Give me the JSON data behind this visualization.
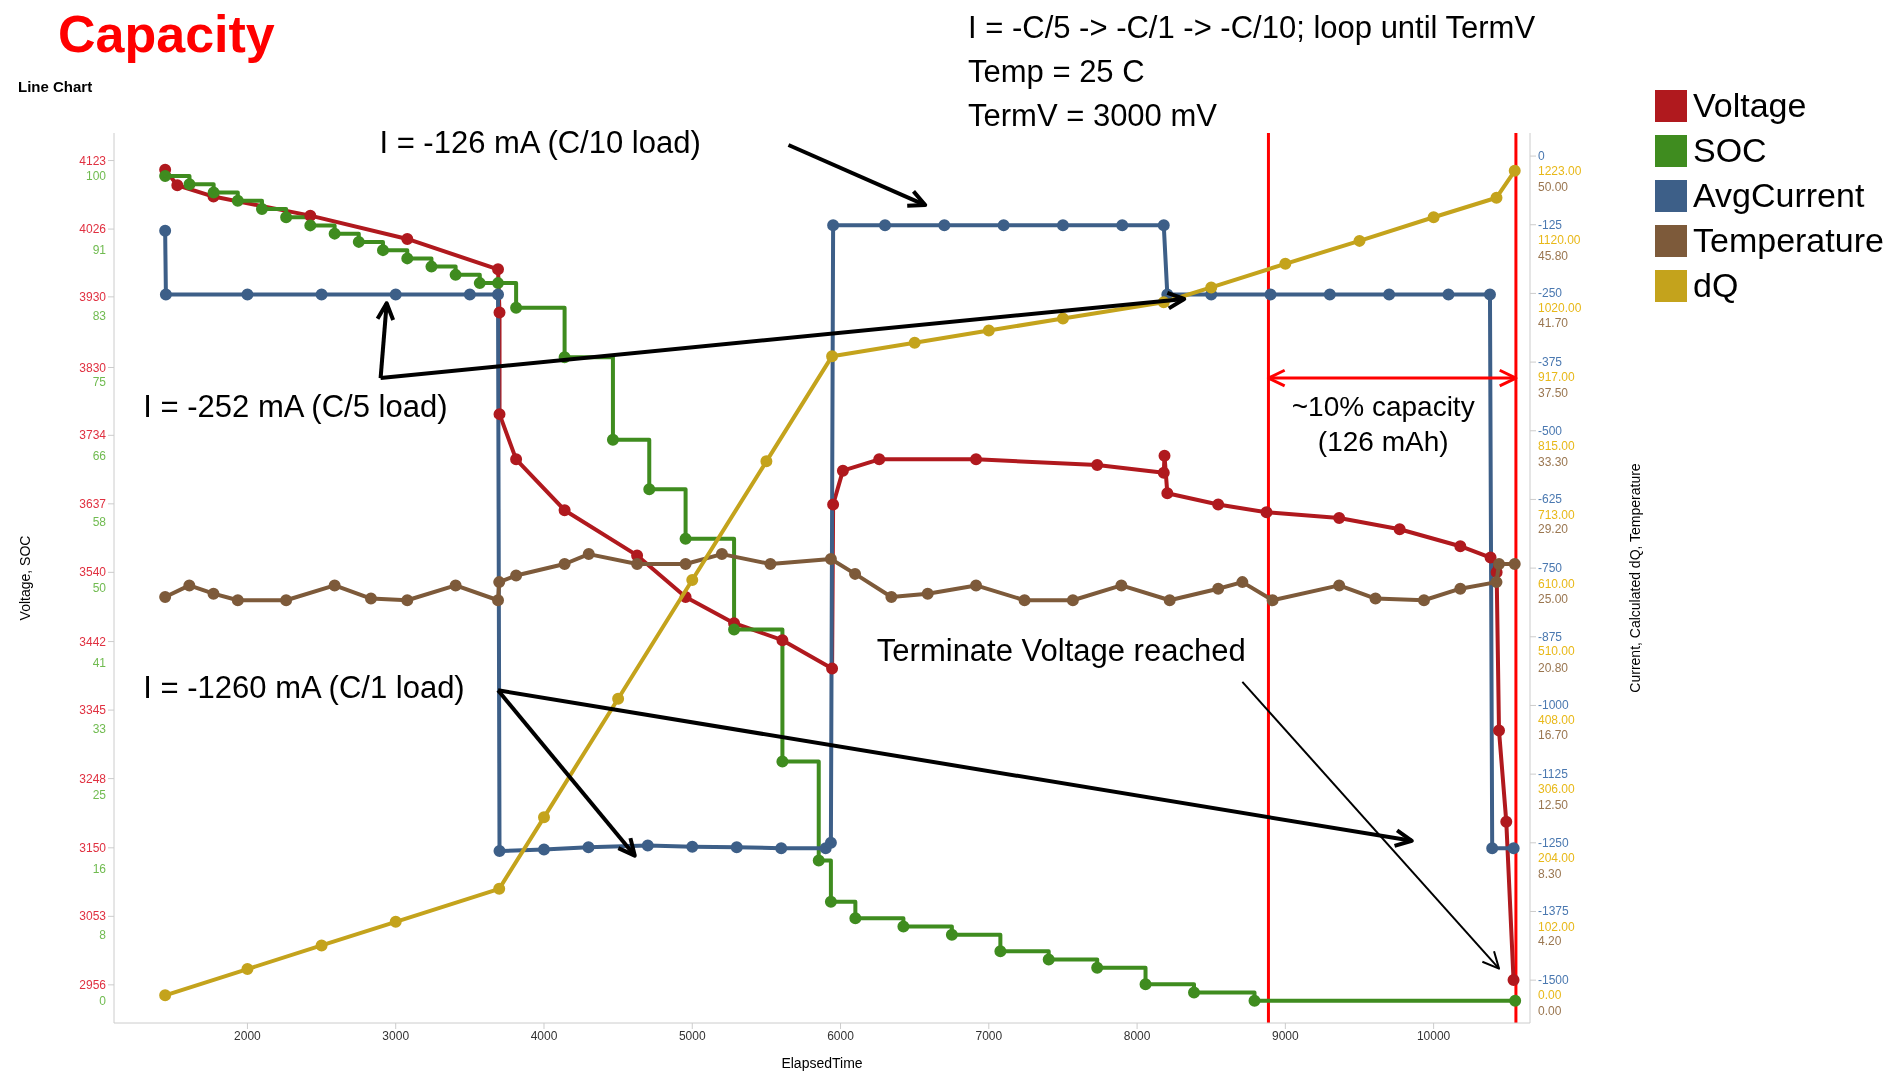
{
  "chart_data": [
    {
      "type": "line",
      "title": "Capacity",
      "subtitle": "Line Chart",
      "xlabel": "ElapsedTime",
      "ylabel": "Voltage, SOC",
      "y3label": "Current, Calculated dQ, Temperature",
      "xlim": [
        1100,
        10650
      ],
      "xticks": [
        2000,
        3000,
        4000,
        5000,
        6000,
        7000,
        8000,
        9000,
        10000
      ],
      "ylim": [
        2902,
        4162
      ],
      "yticks": [
        2956,
        3053,
        3150,
        3248,
        3345,
        3442,
        3540,
        3637,
        3734,
        3830,
        3930,
        4026,
        4123
      ],
      "y2lim": [
        -2.7,
        105.2
      ],
      "y2ticks": [
        0,
        8,
        16,
        25,
        33,
        41,
        50,
        58,
        66,
        75,
        83,
        91,
        100
      ],
      "y3lim": [
        -1578,
        42
      ],
      "y3ticks": [
        -1500,
        -1375,
        -1250,
        -1125,
        -1000,
        -875,
        -750,
        -625,
        -500,
        -375,
        -250,
        -125,
        0
      ],
      "legend": "top right",
      "marker": "circle",
      "series": [
        {
          "name": "Voltage",
          "color": "#b0191e",
          "x": [
            1445,
            1527,
            1771,
            2424,
            3078,
            3690,
            3700,
            3700,
            3812,
            4139,
            4628,
            4955,
            5282,
            5608,
            5943,
            5950,
            6016,
            6261,
            6914,
            7731,
            8180,
            8185,
            8204,
            8547,
            8873,
            9363,
            9771,
            10180,
            10384,
            10425,
            10441,
            10490,
            10539
          ],
          "values": [
            4110,
            4088,
            4072,
            4045,
            4012,
            3969,
            3908,
            3764,
            3700,
            3628,
            3564,
            3505,
            3468,
            3444,
            3404,
            3636,
            3684,
            3700,
            3700,
            3692,
            3681,
            3705,
            3652,
            3636,
            3625,
            3617,
            3601,
            3577,
            3561,
            3540,
            3316,
            3187,
            2963
          ]
        },
        {
          "name": "SOC",
          "type": "step",
          "color": "#3f8c1f",
          "axis": "y2",
          "x": [
            1445,
            1609,
            1772,
            1935,
            2098,
            2261,
            2424,
            2588,
            2751,
            2914,
            3078,
            3241,
            3404,
            3567,
            3690,
            3812,
            4139,
            4465,
            4710,
            4955,
            5282,
            5608,
            5853,
            5935,
            6100,
            6424,
            6751,
            7078,
            7404,
            7731,
            8057,
            8384,
            8792,
            10550
          ],
          "values": [
            100,
            99,
            98,
            97,
            96,
            95,
            94,
            93,
            92,
            91,
            90,
            89,
            88,
            87,
            87,
            84,
            78,
            68,
            62,
            56,
            45,
            29,
            17,
            12,
            10,
            9,
            8,
            6,
            5,
            4,
            2,
            1,
            0,
            0
          ]
        },
        {
          "name": "AvgCurrent",
          "color": "#3d5f88",
          "axis": "y3",
          "x": [
            1445,
            1450,
            2000,
            2500,
            3000,
            3500,
            3690,
            3700,
            4000,
            4300,
            4700,
            5000,
            5300,
            5600,
            5900,
            5935,
            5950,
            6300,
            6700,
            7100,
            7500,
            7900,
            8180,
            8204,
            8500,
            8900,
            9300,
            9700,
            10100,
            10380,
            10395,
            10540
          ],
          "values": [
            -136,
            -252,
            -252,
            -252,
            -252,
            -252,
            -252,
            -1265,
            -1262,
            -1258,
            -1255,
            -1257,
            -1258,
            -1260,
            -1260,
            -1250,
            -126,
            -126,
            -126,
            -126,
            -126,
            -126,
            -126,
            -252,
            -252,
            -252,
            -252,
            -252,
            -252,
            -252,
            -1260,
            -1260
          ]
        }
      ],
      "ref_lines": [
        {
          "axis": "x",
          "value": 8886,
          "label": null,
          "color": "#ff0000"
        },
        {
          "axis": "x",
          "value": 10555,
          "label": null,
          "color": "#ff0000"
        }
      ],
      "annotations": [
        "I = -C/5 -> -C/1 -> -C/10; loop until TermV",
        "Temp = 25 C",
        "TermV = 3000 mV",
        "I = -126 mA (C/10 load)",
        "I = -252 mA (C/5 load)",
        "I = -1260 mA (C/1 load)",
        "Terminate Voltage reached",
        {
          "text": "~10% capacity",
          "x": 10555,
          "y": 3815
        },
        "(126 mAh)"
      ]
    },
    {
      "type": "line",
      "xlim": [
        1100,
        10650
      ],
      "tick_labels": "y",
      "legend": "top right",
      "marker": "circle",
      "ylim": [
        -41,
        1279
      ],
      "yticks": [
        {
          "value": 0,
          "label": "0.00"
        },
        {
          "value": 102,
          "label": "102.00"
        },
        {
          "value": 204,
          "label": "204.00"
        },
        {
          "value": 306,
          "label": "306.00"
        },
        {
          "value": 408,
          "label": "408.00"
        },
        {
          "value": 510,
          "label": "510.00"
        },
        {
          "value": 610,
          "label": "610.00"
        },
        {
          "value": 713,
          "label": "713.00"
        },
        {
          "value": 815,
          "label": "815.00"
        },
        {
          "value": 917,
          "label": "917.00"
        },
        {
          "value": 1020,
          "label": "1020.00"
        },
        {
          "value": 1120,
          "label": "1120.00"
        },
        {
          "value": 1223,
          "label": "1223.00"
        }
      ],
      "y2lim": [
        -0.75,
        53.25
      ],
      "y2ticks": [
        {
          "value": 0,
          "label": "0.00"
        },
        {
          "value": 4.2,
          "label": "4.20"
        },
        {
          "value": 8.3,
          "label": "8.30"
        },
        {
          "value": 12.5,
          "label": "12.50"
        },
        {
          "value": 16.7,
          "label": "16.70"
        },
        {
          "value": 20.8,
          "label": "20.80"
        },
        {
          "value": 25,
          "label": "25.00"
        },
        {
          "value": 29.2,
          "label": "29.20"
        },
        {
          "value": 33.3,
          "label": "33.30"
        },
        {
          "value": 37.5,
          "label": "37.50"
        },
        {
          "value": 41.7,
          "label": "41.70"
        },
        {
          "value": 45.8,
          "label": "45.80"
        },
        {
          "value": 50,
          "label": "50.00"
        }
      ],
      "series": [
        {
          "name": "Temperature",
          "color": "#7d5a3a",
          "axis": "y2",
          "x": [
            1445,
            1608,
            1771,
            1935,
            2261,
            2588,
            2833,
            3078,
            3404,
            3690,
            3698,
            3812,
            4139,
            4302,
            4628,
            4955,
            5200,
            5527,
            5935,
            6098,
            6343,
            6588,
            6914,
            7241,
            7567,
            7894,
            8220,
            8547,
            8710,
            8914,
            9363,
            9608,
            9935,
            10180,
            10424,
            10441,
            10547
          ],
          "values": [
            25.1,
            25.8,
            25.3,
            24.9,
            24.9,
            25.8,
            25,
            24.9,
            25.8,
            24.9,
            26,
            26.4,
            27.1,
            27.7,
            27.1,
            27.1,
            27.7,
            27.1,
            27.4,
            26.5,
            25.1,
            25.3,
            25.8,
            24.9,
            24.9,
            25.8,
            24.9,
            25.6,
            26,
            24.9,
            25.8,
            25,
            24.9,
            25.6,
            26,
            27.1,
            27.1
          ]
        },
        {
          "name": "dQ",
          "color": "#c4a31c",
          "x": [
            1445,
            2000,
            2500,
            3000,
            3698,
            4000,
            4500,
            5000,
            5500,
            5943,
            6500,
            7000,
            7500,
            8180,
            8500,
            9000,
            9500,
            10000,
            10424,
            10547
          ],
          "values": [
            0,
            39,
            74,
            109,
            158,
            264,
            440,
            616,
            792,
            948,
            968,
            986,
            1004,
            1028,
            1050,
            1085,
            1119,
            1154,
            1183,
            1223
          ]
        }
      ]
    }
  ]
}
